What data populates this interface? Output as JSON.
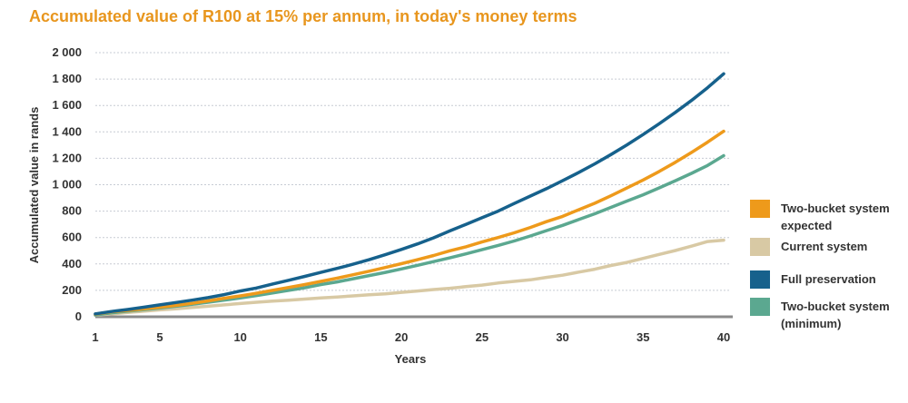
{
  "title": "Accumulated value of R100 at 15% per annum, in today's money terms",
  "chart_data": {
    "type": "line",
    "title": "Accumulated value of R100 at 15% per annum, in today's money terms",
    "xlabel": "Years",
    "ylabel": "Accumulated value in rands",
    "xlim": [
      1,
      40
    ],
    "ylim": [
      0,
      2000
    ],
    "x_ticks": [
      "1",
      "5",
      "10",
      "15",
      "20",
      "25",
      "30",
      "35",
      "40"
    ],
    "y_ticks": [
      "2 000",
      "1 800",
      "1 600",
      "1 400",
      "1 200",
      "1 000",
      "800",
      "600",
      "400",
      "200",
      "0"
    ],
    "grid": "horizontal dashed",
    "legend_position": "right",
    "x": [
      1,
      2,
      3,
      4,
      5,
      6,
      7,
      8,
      9,
      10,
      11,
      12,
      13,
      14,
      15,
      16,
      17,
      18,
      19,
      20,
      21,
      22,
      23,
      24,
      25,
      26,
      27,
      28,
      29,
      30,
      31,
      32,
      33,
      34,
      35,
      36,
      37,
      38,
      39,
      40
    ],
    "series": [
      {
        "name": "Two-bucket system expected",
        "color": "#ee9a1b",
        "values": [
          20,
          38,
          48,
          60,
          72,
          86,
          102,
          120,
          140,
          158,
          178,
          200,
          222,
          244,
          268,
          292,
          318,
          345,
          373,
          402,
          432,
          464,
          500,
          530,
          566,
          600,
          636,
          676,
          720,
          760,
          810,
          860,
          916,
          975,
          1036,
          1100,
          1170,
          1244,
          1322,
          1405
        ]
      },
      {
        "name": "Current system",
        "color": "#d8c9a4",
        "values": [
          12,
          22,
          32,
          42,
          52,
          60,
          70,
          80,
          90,
          100,
          110,
          118,
          126,
          134,
          142,
          150,
          158,
          166,
          174,
          185,
          195,
          206,
          216,
          228,
          240,
          256,
          268,
          280,
          298,
          315,
          338,
          360,
          388,
          412,
          442,
          472,
          502,
          535,
          570,
          580
        ]
      },
      {
        "name": "Full preservation",
        "color": "#16618c",
        "values": [
          22,
          40,
          55,
          72,
          90,
          108,
          126,
          145,
          168,
          195,
          218,
          248,
          276,
          306,
          336,
          366,
          398,
          432,
          470,
          510,
          552,
          598,
          650,
          700,
          750,
          800,
          858,
          914,
          970,
          1030,
          1092,
          1158,
          1228,
          1302,
          1380,
          1462,
          1548,
          1638,
          1735,
          1840
        ]
      },
      {
        "name": "Two-bucket system (minimum)",
        "color": "#5ba890",
        "values": [
          14,
          30,
          42,
          54,
          66,
          80,
          94,
          110,
          126,
          142,
          160,
          180,
          200,
          220,
          244,
          264,
          288,
          312,
          336,
          362,
          390,
          418,
          446,
          476,
          508,
          540,
          574,
          612,
          652,
          692,
          736,
          780,
          828,
          876,
          924,
          976,
          1030,
          1086,
          1146,
          1220
        ]
      }
    ]
  },
  "legend": {
    "items": [
      {
        "label": "Two-bucket system expected",
        "color": "#ee9a1b"
      },
      {
        "label": "Current system",
        "color": "#d8c9a4"
      },
      {
        "label": "Full preservation",
        "color": "#16618c"
      },
      {
        "label": "Two-bucket system (minimum)",
        "color": "#5ba890"
      }
    ]
  }
}
